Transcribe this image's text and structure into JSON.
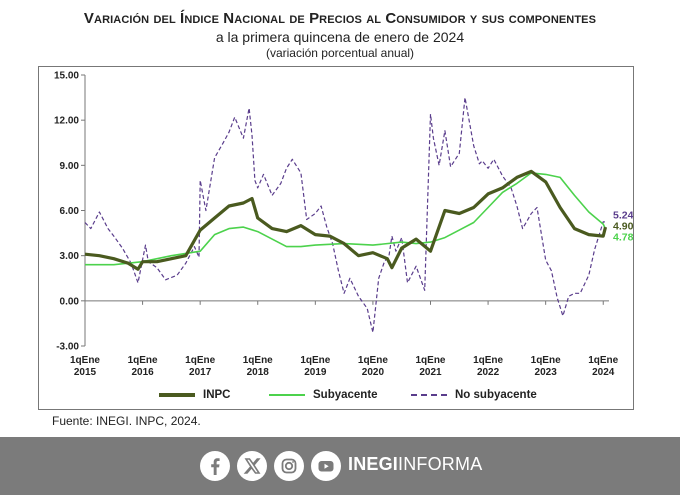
{
  "header": {
    "title": "Variación del Índice Nacional de Precios al Consumidor y sus componentes",
    "subtitle": "a la primera quincena de enero de 2024",
    "unit_note": "(variación porcentual anual)"
  },
  "legend": {
    "inpc": "INPC",
    "subyacente": "Subyacente",
    "no_subyacente": "No subyacente"
  },
  "end_labels": {
    "no_subyacente": "5.24",
    "inpc": "4.90",
    "subyacente": "4.78"
  },
  "source": "Fuente: INEGI. INPC, 2024.",
  "footer": {
    "brand_bold": "INEGI",
    "brand_light": "INFORMA",
    "icons": [
      "facebook-icon",
      "x-icon",
      "instagram-icon",
      "youtube-icon"
    ]
  },
  "colors": {
    "inpc": "#4a5a1f",
    "subyacente": "#4cd24c",
    "no_subyacente": "#5a3d8c",
    "footer_bg": "#7b7b7b"
  },
  "chart_data": {
    "type": "line",
    "title": "Variación del Índice Nacional de Precios al Consumidor y sus componentes",
    "xlabel": "",
    "ylabel": "",
    "ylim": [
      -3,
      15
    ],
    "yticks": [
      "15.00",
      "12.00",
      "9.00",
      "6.00",
      "3.00",
      "0.00",
      "-3.00"
    ],
    "xticks": [
      [
        "1qEne",
        "2015"
      ],
      [
        "1qEne",
        "2016"
      ],
      [
        "1qEne",
        "2017"
      ],
      [
        "1qEne",
        "2018"
      ],
      [
        "1qEne",
        "2019"
      ],
      [
        "1qEne",
        "2020"
      ],
      [
        "1qEne",
        "2021"
      ],
      [
        "1qEne",
        "2022"
      ],
      [
        "1qEne",
        "2023"
      ],
      [
        "1qEne",
        "2024"
      ]
    ],
    "xlim": [
      2015,
      2024.1
    ],
    "legend_position": "bottom",
    "grid": false,
    "series": [
      {
        "name": "INPC",
        "x": [
          2015.0,
          2015.25,
          2015.5,
          2015.75,
          2015.92,
          2016.0,
          2016.25,
          2016.5,
          2016.75,
          2017.0,
          2017.25,
          2017.5,
          2017.75,
          2017.9,
          2018.0,
          2018.25,
          2018.5,
          2018.75,
          2019.0,
          2019.25,
          2019.5,
          2019.75,
          2020.0,
          2020.25,
          2020.33,
          2020.5,
          2020.75,
          2021.0,
          2021.25,
          2021.5,
          2021.75,
          2022.0,
          2022.25,
          2022.5,
          2022.75,
          2023.0,
          2023.25,
          2023.5,
          2023.75,
          2024.0,
          2024.04
        ],
        "y": [
          3.1,
          3.0,
          2.8,
          2.5,
          2.1,
          2.6,
          2.6,
          2.8,
          3.0,
          4.7,
          5.5,
          6.3,
          6.5,
          6.8,
          5.5,
          4.8,
          4.6,
          5.0,
          4.4,
          4.3,
          3.8,
          3.0,
          3.2,
          2.8,
          2.2,
          3.5,
          4.1,
          3.3,
          6.0,
          5.8,
          6.2,
          7.1,
          7.5,
          8.2,
          8.6,
          7.9,
          6.2,
          4.8,
          4.4,
          4.3,
          4.9
        ]
      },
      {
        "name": "Subyacente",
        "x": [
          2015.0,
          2015.5,
          2016.0,
          2016.5,
          2017.0,
          2017.25,
          2017.5,
          2017.75,
          2018.0,
          2018.25,
          2018.5,
          2018.75,
          2019.0,
          2019.5,
          2020.0,
          2020.5,
          2020.75,
          2021.0,
          2021.25,
          2021.5,
          2021.75,
          2022.0,
          2022.25,
          2022.5,
          2022.75,
          2023.0,
          2023.25,
          2023.5,
          2023.75,
          2024.0,
          2024.04
        ],
        "y": [
          2.4,
          2.4,
          2.6,
          3.0,
          3.3,
          4.4,
          4.8,
          4.9,
          4.6,
          4.1,
          3.6,
          3.6,
          3.7,
          3.8,
          3.7,
          3.9,
          3.8,
          3.9,
          4.2,
          4.7,
          5.2,
          6.2,
          7.2,
          7.8,
          8.5,
          8.4,
          8.2,
          7.0,
          5.9,
          5.1,
          4.78
        ]
      },
      {
        "name": "No subyacente",
        "x": [
          2015.0,
          2015.1,
          2015.25,
          2015.4,
          2015.5,
          2015.65,
          2015.8,
          2015.92,
          2016.05,
          2016.1,
          2016.25,
          2016.4,
          2016.6,
          2016.75,
          2016.9,
          2016.98,
          2017.0,
          2017.1,
          2017.25,
          2017.4,
          2017.5,
          2017.6,
          2017.75,
          2017.85,
          2017.9,
          2017.95,
          2018.0,
          2018.1,
          2018.25,
          2018.4,
          2018.5,
          2018.6,
          2018.75,
          2018.85,
          2019.0,
          2019.1,
          2019.2,
          2019.3,
          2019.4,
          2019.5,
          2019.6,
          2019.75,
          2019.9,
          2020.0,
          2020.1,
          2020.2,
          2020.28,
          2020.33,
          2020.4,
          2020.5,
          2020.6,
          2020.75,
          2020.9,
          2021.0,
          2021.05,
          2021.15,
          2021.25,
          2021.35,
          2021.5,
          2021.6,
          2021.75,
          2021.85,
          2021.9,
          2022.0,
          2022.1,
          2022.25,
          2022.4,
          2022.5,
          2022.6,
          2022.75,
          2022.85,
          2023.0,
          2023.1,
          2023.2,
          2023.3,
          2023.4,
          2023.5,
          2023.6,
          2023.75,
          2023.85,
          2024.0,
          2024.04
        ],
        "y": [
          5.2,
          4.8,
          5.9,
          4.8,
          4.3,
          3.5,
          2.5,
          1.2,
          3.7,
          2.6,
          2.2,
          1.4,
          1.7,
          2.5,
          3.6,
          2.9,
          8.0,
          6.0,
          9.5,
          10.5,
          11.2,
          12.2,
          10.8,
          12.8,
          11.0,
          8.0,
          7.5,
          8.4,
          7.0,
          7.8,
          8.8,
          9.4,
          8.5,
          5.4,
          5.8,
          6.3,
          4.9,
          3.8,
          2.0,
          0.5,
          1.5,
          0.3,
          -0.5,
          -2.1,
          1.5,
          2.6,
          3.0,
          4.3,
          3.3,
          4.2,
          1.2,
          2.3,
          0.7,
          12.4,
          10.8,
          9.0,
          11.3,
          8.9,
          9.8,
          13.5,
          10.3,
          9.1,
          9.3,
          8.8,
          9.4,
          8.3,
          7.5,
          6.3,
          4.8,
          5.8,
          6.2,
          2.7,
          2.0,
          0.2,
          -1.0,
          0.3,
          0.5,
          0.5,
          1.7,
          3.4,
          5.24,
          5.24
        ]
      }
    ]
  }
}
